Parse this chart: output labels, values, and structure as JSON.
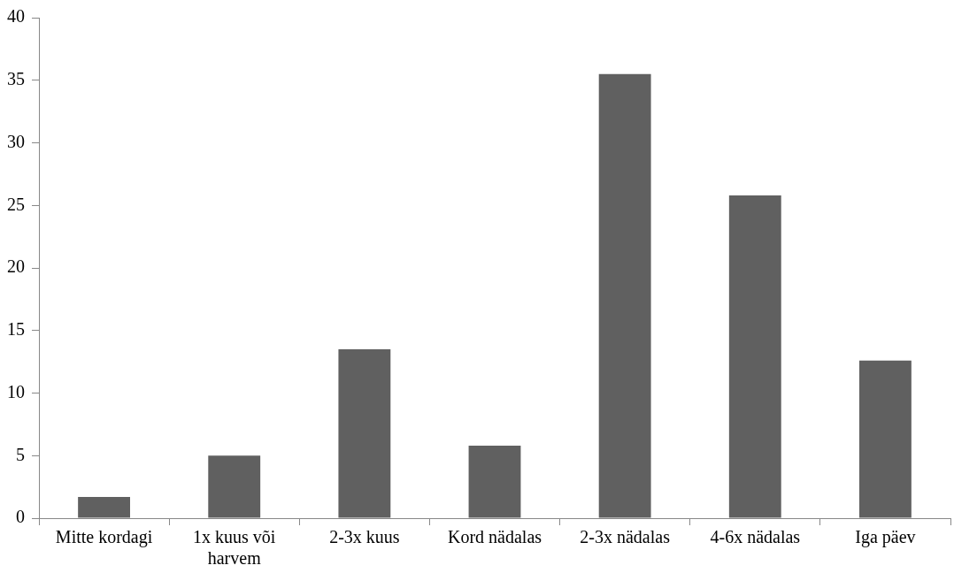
{
  "chart_data": {
    "type": "bar",
    "categories": [
      "Mitte kordagi",
      "1x kuus või harvem",
      "2-3x kuus",
      "Kord nädalas",
      "2-3x nädalas",
      "4-6x nädalas",
      "Iga päev"
    ],
    "values": [
      1.7,
      5.0,
      13.5,
      5.8,
      35.5,
      25.8,
      12.6
    ],
    "color": "#606060",
    "ylim": [
      0,
      40
    ],
    "yticks": [
      0,
      5,
      10,
      15,
      20,
      25,
      30,
      35,
      40
    ],
    "grid": false,
    "legend": false
  }
}
